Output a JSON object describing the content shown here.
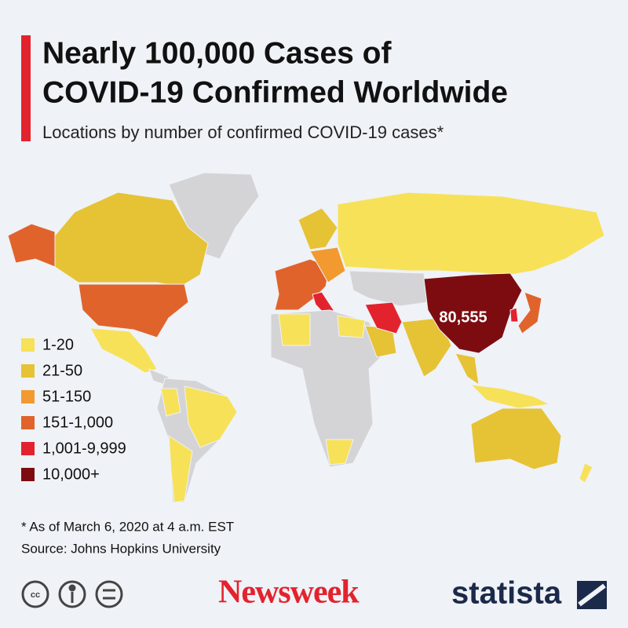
{
  "header": {
    "title_lines": [
      "Nearly 100,000 Cases of",
      "COVID-19 Confirmed Worldwide"
    ],
    "subtitle": "Locations by number of confirmed COVID-19 cases*"
  },
  "map": {
    "annotation": "80,555"
  },
  "legend": {
    "items": [
      {
        "label": "1-20",
        "color": "#f7e158"
      },
      {
        "label": "21-50",
        "color": "#e6c235"
      },
      {
        "label": "51-150",
        "color": "#f29a30"
      },
      {
        "label": "151-1,000",
        "color": "#e0632c"
      },
      {
        "label": "1,001-9,999",
        "color": "#e2232e"
      },
      {
        "label": "10,000+",
        "color": "#7d0c10"
      }
    ],
    "no_data_color": "#d4d4d6"
  },
  "footer": {
    "note": "* As of March 6, 2020 at 4 a.m. EST",
    "source": "Source: Johns Hopkins University",
    "brand_left": "Newsweek",
    "brand_right": "statista"
  }
}
